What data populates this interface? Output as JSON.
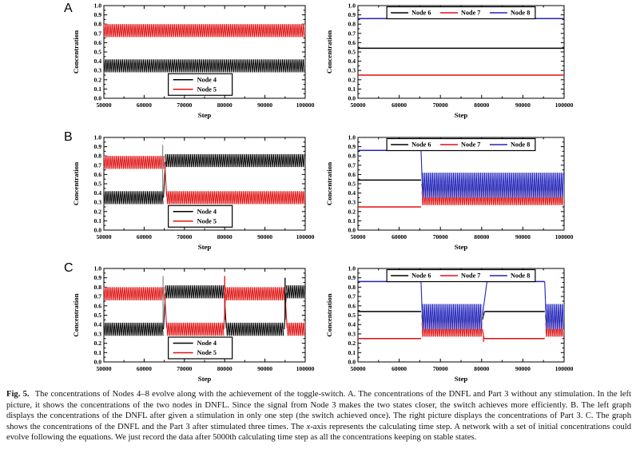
{
  "figure": {
    "panel_labels": [
      "A",
      "B",
      "C"
    ],
    "caption_runs": [
      {
        "text": "Fig. 5.",
        "bold": true
      },
      {
        "text": " The concentrations of Nodes 4–8 evolve along with the achievement of the toggle-switch. A. The concentrations of the DNFL and Part 3 without any stimulation. In the left picture, it shows the concentrations of the two nodes in DNFL. Since the signal from Node 3 makes the two states closer, the switch achieves more efficiently. B. The left graph displays the concentrations of the DNFL after given a stimulation in only one step (the switch achieved once). The right picture displays the concentrations of Part 3. C. The graph shows the concentrations of the DNFL and the Part 3 after stimulated three times. The "
      },
      {
        "text": "x",
        "italic": true
      },
      {
        "text": "-axis represents the calculating time step. A network with a set of initial concentrations could evolve following the equations. We just record the data after 5000th calculating time step as all the concentrations keeping on stable states."
      }
    ]
  },
  "chart_data": {
    "type": "line",
    "x_axis": {
      "label": "Step",
      "min": 50000,
      "max": 100000,
      "major_step": 10000,
      "minor_step": 5000,
      "tick_labels": [
        "50000",
        "60000",
        "70000",
        "80000",
        "90000",
        "100000"
      ]
    },
    "y_axis": {
      "label": "Concentration",
      "min": 0.0,
      "max": 1.0,
      "major_step": 0.1,
      "minor_step": 0.05,
      "tick_labels": [
        "0.0",
        "0.1",
        "0.2",
        "0.3",
        "0.4",
        "0.5",
        "0.6",
        "0.7",
        "0.8",
        "0.9",
        "1.0"
      ]
    },
    "colors": {
      "black": "#000000",
      "red": "#dd1111",
      "blue": "#2323bb",
      "light_black": "#b3b3b3",
      "light_red": "#f5a5a5",
      "light_blue": "#a9ade8",
      "spike_gray": "#8f8f8f"
    },
    "panels": [
      {
        "id": "a-left",
        "row": "A",
        "side": "left",
        "legend_pos": "bottom",
        "legend": [
          {
            "label": "Node 4",
            "color": "black"
          },
          {
            "label": "Node 5",
            "color": "red"
          }
        ],
        "series": [
          {
            "name": "Node 4",
            "color": "black",
            "segments": [
              {
                "mode": "band",
                "x0": 50000,
                "x1": 100000,
                "lo": 0.28,
                "hi": 0.42
              }
            ]
          },
          {
            "name": "Node 5",
            "color": "red",
            "segments": [
              {
                "mode": "band",
                "x0": 50000,
                "x1": 100000,
                "lo": 0.66,
                "hi": 0.8
              }
            ]
          }
        ],
        "spikes": []
      },
      {
        "id": "a-right",
        "row": "A",
        "side": "right",
        "legend_pos": "top",
        "legend": [
          {
            "label": "Node 6",
            "color": "black"
          },
          {
            "label": "Node 7",
            "color": "red"
          },
          {
            "label": "Node 8",
            "color": "blue"
          }
        ],
        "series": [
          {
            "name": "Node 6",
            "color": "black",
            "segments": [
              {
                "mode": "flat",
                "x0": 50000,
                "x1": 100000,
                "y": 0.54
              }
            ]
          },
          {
            "name": "Node 7",
            "color": "red",
            "segments": [
              {
                "mode": "flat",
                "x0": 50000,
                "x1": 100000,
                "y": 0.25
              }
            ]
          },
          {
            "name": "Node 8",
            "color": "blue",
            "segments": [
              {
                "mode": "flat",
                "x0": 50000,
                "x1": 100000,
                "y": 0.86
              }
            ]
          }
        ],
        "spikes": []
      },
      {
        "id": "b-left",
        "row": "B",
        "side": "left",
        "legend_pos": "bottom",
        "legend": [
          {
            "label": "Node 4",
            "color": "black"
          },
          {
            "label": "Node 5",
            "color": "red"
          }
        ],
        "series": [
          {
            "name": "Node 4",
            "color": "black",
            "segments": [
              {
                "mode": "band",
                "x0": 50000,
                "x1": 64800,
                "lo": 0.28,
                "hi": 0.42
              },
              {
                "mode": "ramp",
                "x0": 64800,
                "x1": 65300,
                "y0": 0.35,
                "y1": 0.74
              },
              {
                "mode": "band",
                "x0": 65300,
                "x1": 100000,
                "lo": 0.68,
                "hi": 0.82
              }
            ]
          },
          {
            "name": "Node 5",
            "color": "red",
            "segments": [
              {
                "mode": "band",
                "x0": 50000,
                "x1": 65100,
                "lo": 0.66,
                "hi": 0.8
              },
              {
                "mode": "ramp",
                "x0": 65100,
                "x1": 65600,
                "y0": 0.73,
                "y1": 0.36
              },
              {
                "mode": "band",
                "x0": 65600,
                "x1": 100000,
                "lo": 0.28,
                "hi": 0.42
              }
            ]
          }
        ],
        "spikes": [
          {
            "x": 64600,
            "y0": 0.42,
            "y1": 0.92,
            "color": "spike_gray"
          }
        ]
      },
      {
        "id": "b-right",
        "row": "B",
        "side": "right",
        "legend_pos": "top",
        "legend": [
          {
            "label": "Node 6",
            "color": "black"
          },
          {
            "label": "Node 7",
            "color": "red"
          },
          {
            "label": "Node 8",
            "color": "blue"
          }
        ],
        "series": [
          {
            "name": "Node 6",
            "color": "black",
            "segments": [
              {
                "mode": "flat",
                "x0": 50000,
                "x1": 65300,
                "y": 0.54
              },
              {
                "mode": "band",
                "x0": 65500,
                "x1": 100000,
                "lo": 0.34,
                "hi": 0.5
              }
            ]
          },
          {
            "name": "Node 7",
            "color": "red",
            "segments": [
              {
                "mode": "flat",
                "x0": 50000,
                "x1": 65300,
                "y": 0.25
              },
              {
                "mode": "band",
                "x0": 65500,
                "x1": 100000,
                "lo": 0.27,
                "hi": 0.42
              }
            ]
          },
          {
            "name": "Node 8",
            "color": "blue",
            "segments": [
              {
                "mode": "flat",
                "x0": 50000,
                "x1": 65300,
                "y": 0.86
              },
              {
                "mode": "ramp",
                "x0": 65300,
                "x1": 65600,
                "y0": 0.86,
                "y1": 0.5
              },
              {
                "mode": "band",
                "x0": 65600,
                "x1": 100000,
                "lo": 0.35,
                "hi": 0.62
              }
            ]
          }
        ],
        "spikes": []
      },
      {
        "id": "c-left",
        "row": "C",
        "side": "left",
        "legend_pos": "bottom",
        "legend": [
          {
            "label": "Node 4",
            "color": "black"
          },
          {
            "label": "Node 5",
            "color": "red"
          }
        ],
        "series": [
          {
            "name": "Node 4",
            "color": "black",
            "segments": [
              {
                "mode": "band",
                "x0": 50000,
                "x1": 64800,
                "lo": 0.28,
                "hi": 0.42
              },
              {
                "mode": "ramp",
                "x0": 64800,
                "x1": 65300,
                "y0": 0.35,
                "y1": 0.74
              },
              {
                "mode": "band",
                "x0": 65300,
                "x1": 79900,
                "lo": 0.68,
                "hi": 0.82
              },
              {
                "mode": "ramp",
                "x0": 79900,
                "x1": 80400,
                "y0": 0.74,
                "y1": 0.36
              },
              {
                "mode": "band",
                "x0": 80400,
                "x1": 94800,
                "lo": 0.28,
                "hi": 0.42
              },
              {
                "mode": "ramp",
                "x0": 94800,
                "x1": 95300,
                "y0": 0.35,
                "y1": 0.74
              },
              {
                "mode": "band",
                "x0": 95300,
                "x1": 100000,
                "lo": 0.68,
                "hi": 0.82
              }
            ]
          },
          {
            "name": "Node 5",
            "color": "red",
            "segments": [
              {
                "mode": "band",
                "x0": 50000,
                "x1": 65100,
                "lo": 0.66,
                "hi": 0.8
              },
              {
                "mode": "ramp",
                "x0": 65100,
                "x1": 65600,
                "y0": 0.72,
                "y1": 0.36
              },
              {
                "mode": "band",
                "x0": 65600,
                "x1": 79800,
                "lo": 0.28,
                "hi": 0.42
              },
              {
                "mode": "ramp",
                "x0": 79800,
                "x1": 80200,
                "y0": 0.35,
                "y1": 0.72
              },
              {
                "mode": "band",
                "x0": 80200,
                "x1": 95000,
                "lo": 0.66,
                "hi": 0.8
              },
              {
                "mode": "ramp",
                "x0": 95000,
                "x1": 95500,
                "y0": 0.72,
                "y1": 0.36
              },
              {
                "mode": "band",
                "x0": 95500,
                "x1": 100000,
                "lo": 0.28,
                "hi": 0.42
              }
            ]
          }
        ],
        "spikes": [
          {
            "x": 64700,
            "y0": 0.42,
            "y1": 0.92,
            "color": "spike_gray"
          },
          {
            "x": 80000,
            "y0": 0.45,
            "y1": 0.92,
            "color": "red"
          },
          {
            "x": 95000,
            "y0": 0.45,
            "y1": 0.9,
            "color": "black"
          }
        ]
      },
      {
        "id": "c-right",
        "row": "C",
        "side": "right",
        "legend_pos": "top",
        "legend": [
          {
            "label": "Node 6",
            "color": "black"
          },
          {
            "label": "Node 7",
            "color": "red"
          },
          {
            "label": "Node 8",
            "color": "blue"
          }
        ],
        "series": [
          {
            "name": "Node 6",
            "color": "black",
            "segments": [
              {
                "mode": "flat",
                "x0": 50000,
                "x1": 65300,
                "y": 0.54
              },
              {
                "mode": "band",
                "x0": 65500,
                "x1": 80200,
                "lo": 0.34,
                "hi": 0.5
              },
              {
                "mode": "ramp",
                "x0": 80200,
                "x1": 80700,
                "y0": 0.45,
                "y1": 0.54
              },
              {
                "mode": "flat",
                "x0": 80700,
                "x1": 95300,
                "y": 0.54
              },
              {
                "mode": "band",
                "x0": 95500,
                "x1": 100000,
                "lo": 0.34,
                "hi": 0.5
              }
            ]
          },
          {
            "name": "Node 7",
            "color": "red",
            "segments": [
              {
                "mode": "flat",
                "x0": 50000,
                "x1": 65300,
                "y": 0.25
              },
              {
                "mode": "band",
                "x0": 65500,
                "x1": 80200,
                "lo": 0.27,
                "hi": 0.42
              },
              {
                "mode": "ramp",
                "x0": 80200,
                "x1": 80600,
                "y0": 0.35,
                "y1": 0.25
              },
              {
                "mode": "flat",
                "x0": 80600,
                "x1": 95300,
                "y": 0.25
              },
              {
                "mode": "band",
                "x0": 95500,
                "x1": 100000,
                "lo": 0.27,
                "hi": 0.42
              }
            ]
          },
          {
            "name": "Node 8",
            "color": "blue",
            "segments": [
              {
                "mode": "flat",
                "x0": 50000,
                "x1": 65300,
                "y": 0.86
              },
              {
                "mode": "ramp",
                "x0": 65300,
                "x1": 65600,
                "y0": 0.86,
                "y1": 0.5
              },
              {
                "mode": "band",
                "x0": 65600,
                "x1": 80200,
                "lo": 0.35,
                "hi": 0.62
              },
              {
                "mode": "ramp",
                "x0": 80200,
                "x1": 81300,
                "y0": 0.5,
                "y1": 0.86
              },
              {
                "mode": "flat",
                "x0": 81300,
                "x1": 95300,
                "y": 0.86
              },
              {
                "mode": "ramp",
                "x0": 95300,
                "x1": 95600,
                "y0": 0.86,
                "y1": 0.5
              },
              {
                "mode": "band",
                "x0": 95600,
                "x1": 100000,
                "lo": 0.35,
                "hi": 0.62
              }
            ]
          }
        ],
        "spikes": [
          {
            "x": 80450,
            "y0": 0.215,
            "y1": 0.27,
            "color": "red"
          }
        ]
      }
    ]
  }
}
